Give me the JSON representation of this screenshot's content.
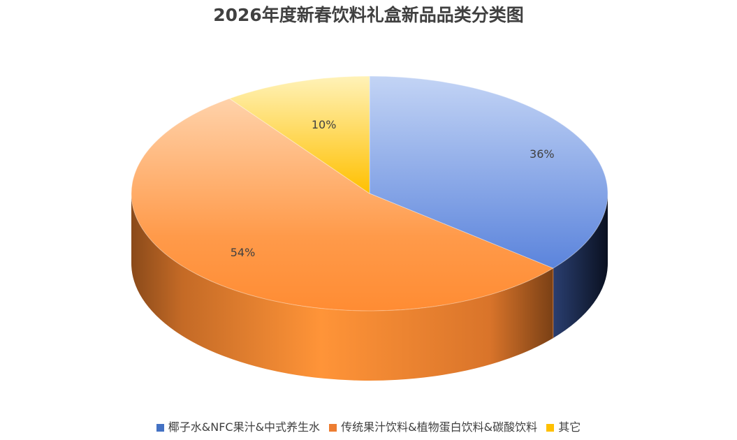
{
  "chart_data": {
    "type": "pie",
    "title": "2026年度新春饮料礼盒新品品类分类图",
    "series": [
      {
        "name": "椰子水&NFC果汁&中式养生水",
        "value": 36,
        "label": "36%",
        "color": "#5b84dc"
      },
      {
        "name": "传统果汁饮料&植物蛋白饮料&碳酸饮料",
        "value": 54,
        "label": "54%",
        "color": "#ff8c33"
      },
      {
        "name": "其它",
        "value": 10,
        "label": "10%",
        "color": "#ffc000"
      }
    ],
    "legend_position": "bottom"
  }
}
